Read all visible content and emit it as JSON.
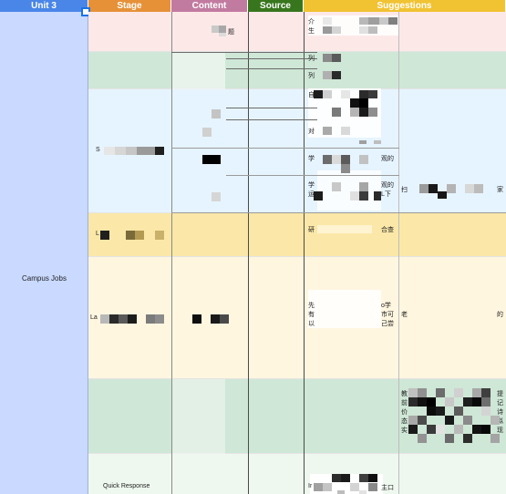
{
  "header": {
    "unit": "Unit 3",
    "stage": "Stage",
    "content": "Content",
    "source": "Source",
    "suggestions": "Suggestions"
  },
  "colors": {
    "unit_header": "#4a86e8",
    "stage_header": "#e69138",
    "content_header": "#c27ba0",
    "source_header": "#38761d",
    "suggestions_header": "#f1c232",
    "unit_column": "#c9d9ff",
    "band_pink": "#fde8e8",
    "band_green": "#cfe7d6",
    "band_lightblue": "#e6f4ff",
    "band_yellow": "#fbe8a8",
    "band_cream": "#fff6e0",
    "band_mint": "#eef8ef"
  },
  "unit_label": "Campus Jobs",
  "rows": {
    "r1_content_suffix": "题",
    "r1_sugg_a": "介",
    "r1_sugg_b": "生",
    "r2_sugg_a": "列",
    "r2_sugg_b": "列",
    "r3_sugg_a": "自",
    "r3_sugg_b": "对",
    "r3_stage": "S",
    "r3_sugg_c": "学",
    "r3_sugg_c_tail": "观的",
    "r3_sugg_d": "学",
    "r3_sugg_d2": "运",
    "r3_sugg_d_tail": "观的",
    "r3_sugg_d2_tail": "L下",
    "r3_sugg_e": "扫",
    "r3_sugg_e_tail": "家",
    "r4_stage": "L",
    "r4_sugg_a": "研",
    "r4_sugg_a_tail": "合查",
    "r5_stage": "La",
    "r5_sugg_a": "先",
    "r5_sugg_b": "有",
    "r5_sugg_c": "以",
    "r5_sugg_a_tail": "o学",
    "r5_sugg_b_tail": "市可",
    "r5_sugg_c_tail": "己尝",
    "r5_sugg_d": "老",
    "r5_sugg_d_tail": "的",
    "r6_sugg_a": "教",
    "r6_sugg_b": "前",
    "r6_sugg_c": "价",
    "r6_sugg_d": "态",
    "r6_sugg_e": "实",
    "r6_sugg_a_tail": "提",
    "r6_sugg_b_tail": "记",
    "r6_sugg_c_tail": "诗",
    "r6_sugg_d_tail": "拟",
    "r6_sugg_e_tail": "现",
    "r7_stage": "Quick Response",
    "r7_sugg_a": "Ir",
    "r7_sugg_a_tail": "主口"
  }
}
